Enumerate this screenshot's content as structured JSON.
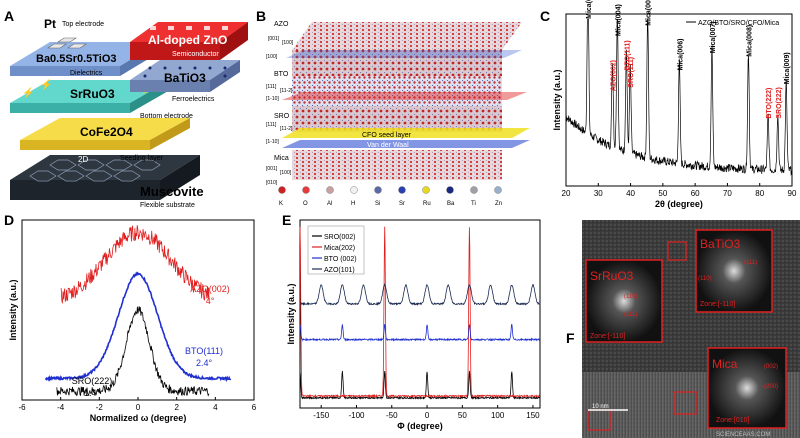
{
  "panel_labels": [
    "A",
    "B",
    "C",
    "D",
    "E",
    "F"
  ],
  "panelA": {
    "pt": "Pt",
    "top_electrode": "Top electrode",
    "azo_title": "Al-doped ZnO",
    "semiconductor": "Semiconductor",
    "bst_formula": "Ba0.5Sr0.5TiO3",
    "dielectrics": "Dielectrics",
    "bto": "BaTiO3",
    "ferroelectrics": "Ferroelectrics",
    "sro": "SrRuO3",
    "bottom_electrode": "Bottom electrode",
    "cfo": "CoFe2O4",
    "seeding": "Seeding layer",
    "muscovite": "Muscovite",
    "flexible": "Flexible substrate",
    "twod": "2D",
    "colors": {
      "azo": "#e8262b",
      "bst": "#8fb0e3",
      "bto": "#8fa4cc",
      "sro": "#5fd3c8",
      "cfo": "#f4d23c",
      "mica": "#3a4250"
    }
  },
  "panelB": {
    "layers": [
      {
        "name": "AZO",
        "dirs": [
          "[001]",
          "[100]",
          "[100]"
        ]
      },
      {
        "name": "BTO",
        "dirs": [
          "[111]",
          "[11-2]",
          "[1-10]"
        ]
      },
      {
        "name": "SRO",
        "dirs": [
          "[111]",
          "[11-2]",
          "[1-10]"
        ]
      },
      {
        "name": "Mica",
        "dirs": [
          "[001]",
          "[100]",
          "[010]"
        ]
      }
    ],
    "cfo_seed": "CFO seed layer",
    "vdw": "Van der Waal",
    "legend": [
      {
        "el": "K",
        "color": "#d02020"
      },
      {
        "el": "O",
        "color": "#e83a3a"
      },
      {
        "el": "Al",
        "color": "#c8a0a0"
      },
      {
        "el": "H",
        "color": "#f0f0f0"
      },
      {
        "el": "Si",
        "color": "#5a6aa8"
      },
      {
        "el": "Sr",
        "color": "#2a40b0"
      },
      {
        "el": "Ru",
        "color": "#e8d820"
      },
      {
        "el": "Ba",
        "color": "#1a2a80"
      },
      {
        "el": "Ti",
        "color": "#a0a0a8"
      },
      {
        "el": "Zn",
        "color": "#9ab0c8"
      }
    ]
  },
  "panelF": {
    "sro": "SrRuO3",
    "bto": "BaTiO3",
    "mica": "Mica",
    "sro_zone": "Zone:[-110]",
    "bto_zone": "Zone:[-110]",
    "mica_zone": "Zone:[010]",
    "sro_hkl": [
      "(110)",
      "(111)"
    ],
    "bto_hkl": [
      "(111)",
      "(110)"
    ],
    "mica_hkl": [
      "(002)",
      "(200)"
    ],
    "scale": "10 nm",
    "watermark": "SCIENCEAAS.COM"
  },
  "chart_data": [
    {
      "id": "C",
      "type": "line",
      "title": "",
      "legend": "AZO/BTO/SRO/CFO/Mica",
      "xlabel": "2θ (degree)",
      "ylabel": "Intensity (a.u.)",
      "xlim": [
        20,
        90
      ],
      "xticks": [
        20,
        30,
        40,
        50,
        60,
        70,
        80,
        90
      ],
      "peaks": [
        {
          "x": 26.8,
          "h": 0.9,
          "label": "Mica(003)",
          "color": "#000"
        },
        {
          "x": 35.9,
          "h": 0.8,
          "label": "Mica(004)",
          "color": "#000"
        },
        {
          "x": 34.4,
          "h": 0.48,
          "label": "AZO(002)",
          "color": "#e02020"
        },
        {
          "x": 38.7,
          "h": 0.6,
          "label": "BTO(111)",
          "color": "#e02020"
        },
        {
          "x": 39.9,
          "h": 0.5,
          "label": "SRO(111)",
          "color": "#e02020"
        },
        {
          "x": 45.3,
          "h": 0.86,
          "label": "Mica(005)",
          "color": "#000"
        },
        {
          "x": 55.1,
          "h": 0.6,
          "label": "Mica(006)",
          "color": "#000"
        },
        {
          "x": 65.2,
          "h": 0.7,
          "label": "Mica(007)",
          "color": "#000"
        },
        {
          "x": 76.5,
          "h": 0.68,
          "label": "Mica(008)",
          "color": "#000"
        },
        {
          "x": 82.6,
          "h": 0.32,
          "label": "BTO(222)",
          "color": "#e02020"
        },
        {
          "x": 85.6,
          "h": 0.32,
          "label": "SRO(222)",
          "color": "#e02020"
        },
        {
          "x": 88.2,
          "h": 0.52,
          "label": "Mica(009)",
          "color": "#000"
        }
      ]
    },
    {
      "id": "D",
      "type": "line",
      "xlabel": "Normalized ω (degree)",
      "ylabel": "Intensity (a.u.)",
      "xlim": [
        -6,
        6
      ],
      "xticks": [
        -6,
        -4,
        -2,
        0,
        2,
        4,
        6
      ],
      "series": [
        {
          "name": "AZO(002)",
          "fwhm": "4°",
          "color": "#e02020",
          "width": 4.0,
          "base": 0.55,
          "amp": 0.38,
          "range": [
            -4,
            3.7
          ]
        },
        {
          "name": "BTO(111)",
          "fwhm": "2.4°",
          "color": "#2030d0",
          "width": 2.4,
          "base": 0.12,
          "amp": 0.58,
          "range": [
            -4.8,
            4.8
          ]
        },
        {
          "name": "SRO(222)",
          "fwhm": "1.4°",
          "color": "#000000",
          "width": 1.4,
          "base": 0.05,
          "amp": 0.45,
          "range": [
            -4.2,
            3.7
          ]
        }
      ]
    },
    {
      "id": "E",
      "type": "line",
      "xlabel": "Φ (degree)",
      "ylabel": "Intensity (a.u.)",
      "xlim": [
        -180,
        160
      ],
      "xticks": [
        -150,
        -100,
        -50,
        0,
        50,
        100,
        150
      ],
      "series": [
        {
          "name": "SRO(002)",
          "color": "#000000",
          "offset": 0.05,
          "peaks": [
            -180,
            -120,
            -60,
            0,
            60,
            120
          ],
          "amp": 0.14
        },
        {
          "name": "Mica(202)",
          "color": "#e02020",
          "offset": 0.06,
          "peaks": [
            -180,
            -60,
            60
          ],
          "amp": 0.9
        },
        {
          "name": "BTO (002)",
          "color": "#2030d0",
          "offset": 0.36,
          "peaks": [
            -180,
            -120,
            -60,
            0,
            60,
            120
          ],
          "amp": 0.08
        },
        {
          "name": "AZO(101)",
          "color": "#1a2a50",
          "offset": 0.55,
          "peaks": [
            -150,
            -120,
            -90,
            -60,
            -30,
            0,
            30,
            60,
            90,
            120,
            150
          ],
          "amp": 0.1
        }
      ]
    }
  ]
}
